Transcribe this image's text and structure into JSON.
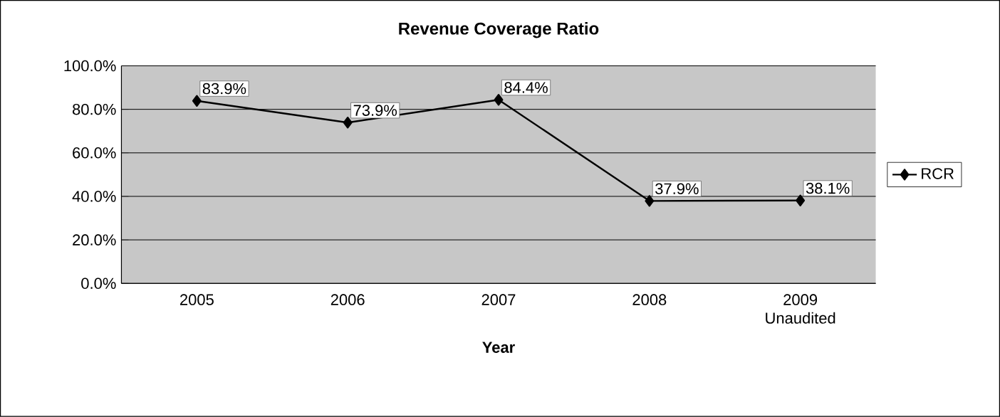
{
  "chart_data": {
    "type": "line",
    "title": "Revenue Coverage Ratio",
    "xlabel": "Year",
    "categories": [
      "2005",
      "2006",
      "2007",
      "2008",
      "2009 Unaudited"
    ],
    "series": [
      {
        "name": "RCR",
        "color": "#000000",
        "values": [
          83.9,
          73.9,
          84.4,
          37.9,
          38.1
        ],
        "value_labels": [
          "83.9%",
          "73.9%",
          "84.4%",
          "37.9%",
          "38.1%"
        ]
      }
    ],
    "ylim": [
      0,
      100
    ],
    "yticks": [
      {
        "value": 0,
        "label": "0.0%"
      },
      {
        "value": 20,
        "label": "20.0%"
      },
      {
        "value": 40,
        "label": "40.0%"
      },
      {
        "value": 60,
        "label": "60.0%"
      },
      {
        "value": 80,
        "label": "80.0%"
      },
      {
        "value": 100,
        "label": "100.0%"
      }
    ],
    "grid": "y",
    "legend": "right",
    "marker": "diamond",
    "line_style": "solid"
  }
}
